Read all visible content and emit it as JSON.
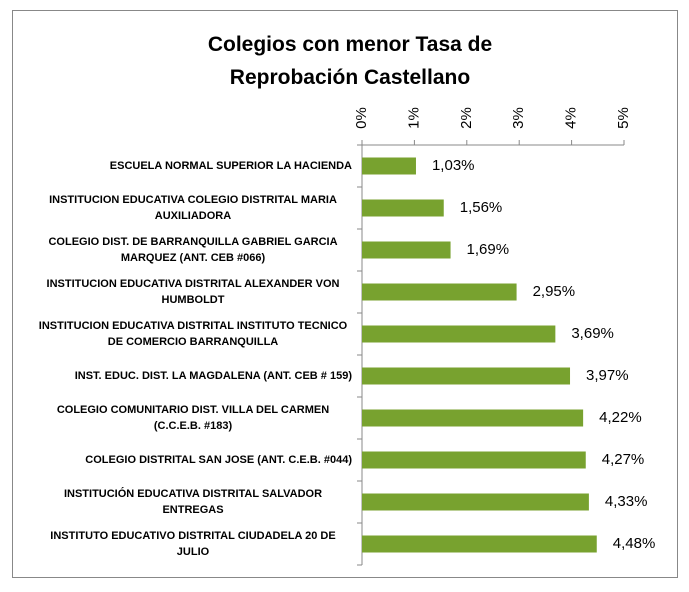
{
  "chart_data": {
    "type": "barh",
    "title": "Colegios con menor Tasa de Reprobación Castellano",
    "categories": [
      "ESCUELA NORMAL SUPERIOR LA HACIENDA",
      "INSTITUCION EDUCATIVA COLEGIO DISTRITAL MARIA AUXILIADORA",
      "COLEGIO DIST. DE BARRANQUILLA GABRIEL GARCIA MARQUEZ (ANT. CEB #066)",
      "INSTITUCION EDUCATIVA DISTRITAL ALEXANDER VON HUMBOLDT",
      "INSTITUCION EDUCATIVA DISTRITAL INSTITUTO TECNICO DE COMERCIO BARRANQUILLA",
      "INST. EDUC. DIST. LA MAGDALENA (ANT. CEB # 159)",
      "COLEGIO COMUNITARIO DIST. VILLA DEL CARMEN (C.C.E.B. #183)",
      "COLEGIO DISTRITAL SAN JOSE (ANT. C.E.B. #044)",
      "INSTITUCIÓN EDUCATIVA DISTRITAL SALVADOR ENTREGAS",
      "INSTITUTO EDUCATIVO DISTRITAL CIUDADELA 20 DE JULIO"
    ],
    "values": [
      1.03,
      1.56,
      1.69,
      2.95,
      3.69,
      3.97,
      4.22,
      4.27,
      4.33,
      4.48
    ],
    "value_labels": [
      "1,03%",
      "1,56%",
      "1,69%",
      "2,95%",
      "3,69%",
      "3,97%",
      "4,22%",
      "4,27%",
      "4,33%",
      "4,48%"
    ],
    "color": "#78a22f",
    "xlim": [
      0,
      5
    ],
    "xticks": [
      {
        "value": 0,
        "label": "0%"
      },
      {
        "value": 1,
        "label": "1%"
      },
      {
        "value": 2,
        "label": "2%"
      },
      {
        "value": 3,
        "label": "3%"
      },
      {
        "value": 4,
        "label": "4%"
      },
      {
        "value": 5,
        "label": "5%"
      }
    ],
    "grid": false
  }
}
